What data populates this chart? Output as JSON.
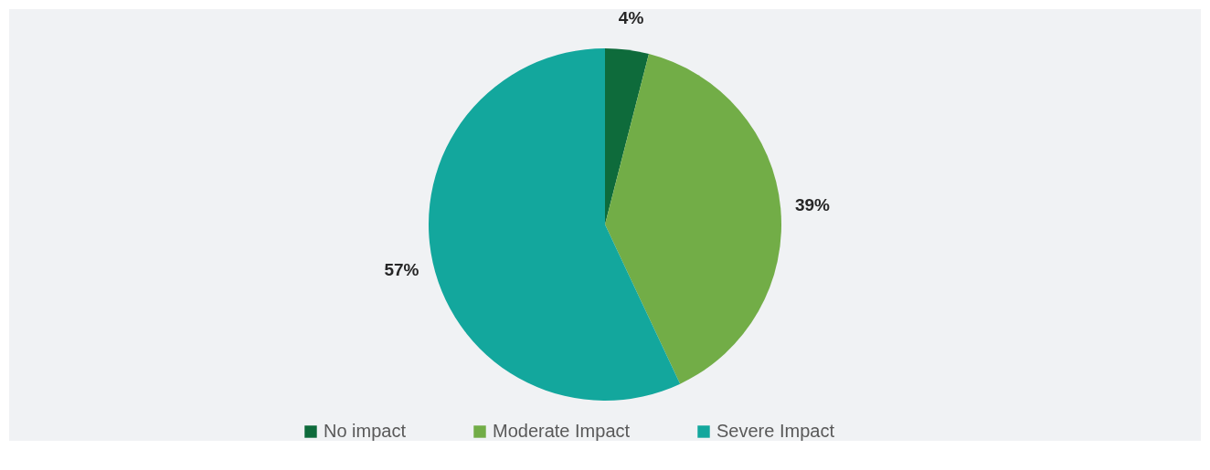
{
  "chart_data": {
    "type": "pie",
    "categories": [
      "No impact",
      "Moderate Impact",
      "Severe Impact"
    ],
    "values": [
      4,
      39,
      57
    ],
    "colors": [
      "#0e6b3b",
      "#72ad47",
      "#13a79d"
    ],
    "value_labels": [
      "4%",
      "39%",
      "57%"
    ],
    "legend": "bottom"
  }
}
